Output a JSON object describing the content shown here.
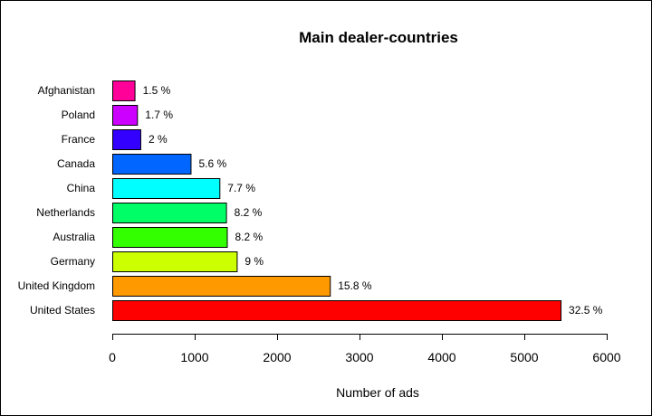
{
  "chart_data": {
    "type": "bar",
    "orientation": "horizontal",
    "title": "Main dealer-countries",
    "xlabel": "Number of ads",
    "ylabel": "",
    "xlim": [
      0,
      6000
    ],
    "xticks": [
      "0",
      "1000",
      "2000",
      "3000",
      "4000",
      "5000",
      "6000"
    ],
    "grid": false,
    "categories": [
      "United States",
      "United Kingdom",
      "Germany",
      "Australia",
      "Netherlands",
      "China",
      "Canada",
      "France",
      "Poland",
      "Afghanistan"
    ],
    "values": [
      5440,
      2640,
      1510,
      1390,
      1380,
      1300,
      950,
      340,
      300,
      270
    ],
    "labels": [
      "32.5 %",
      "15.8 %",
      "9 %",
      "8.2 %",
      "8.2 %",
      "7.7 %",
      "5.6 %",
      "2 %",
      "1.7 %",
      "1.5 %"
    ],
    "colors": [
      "#FF0000",
      "#FF9900",
      "#CCFF00",
      "#33FF00",
      "#00FF66",
      "#00FFFF",
      "#0066FF",
      "#3300FF",
      "#CC00FF",
      "#FF0099"
    ]
  }
}
